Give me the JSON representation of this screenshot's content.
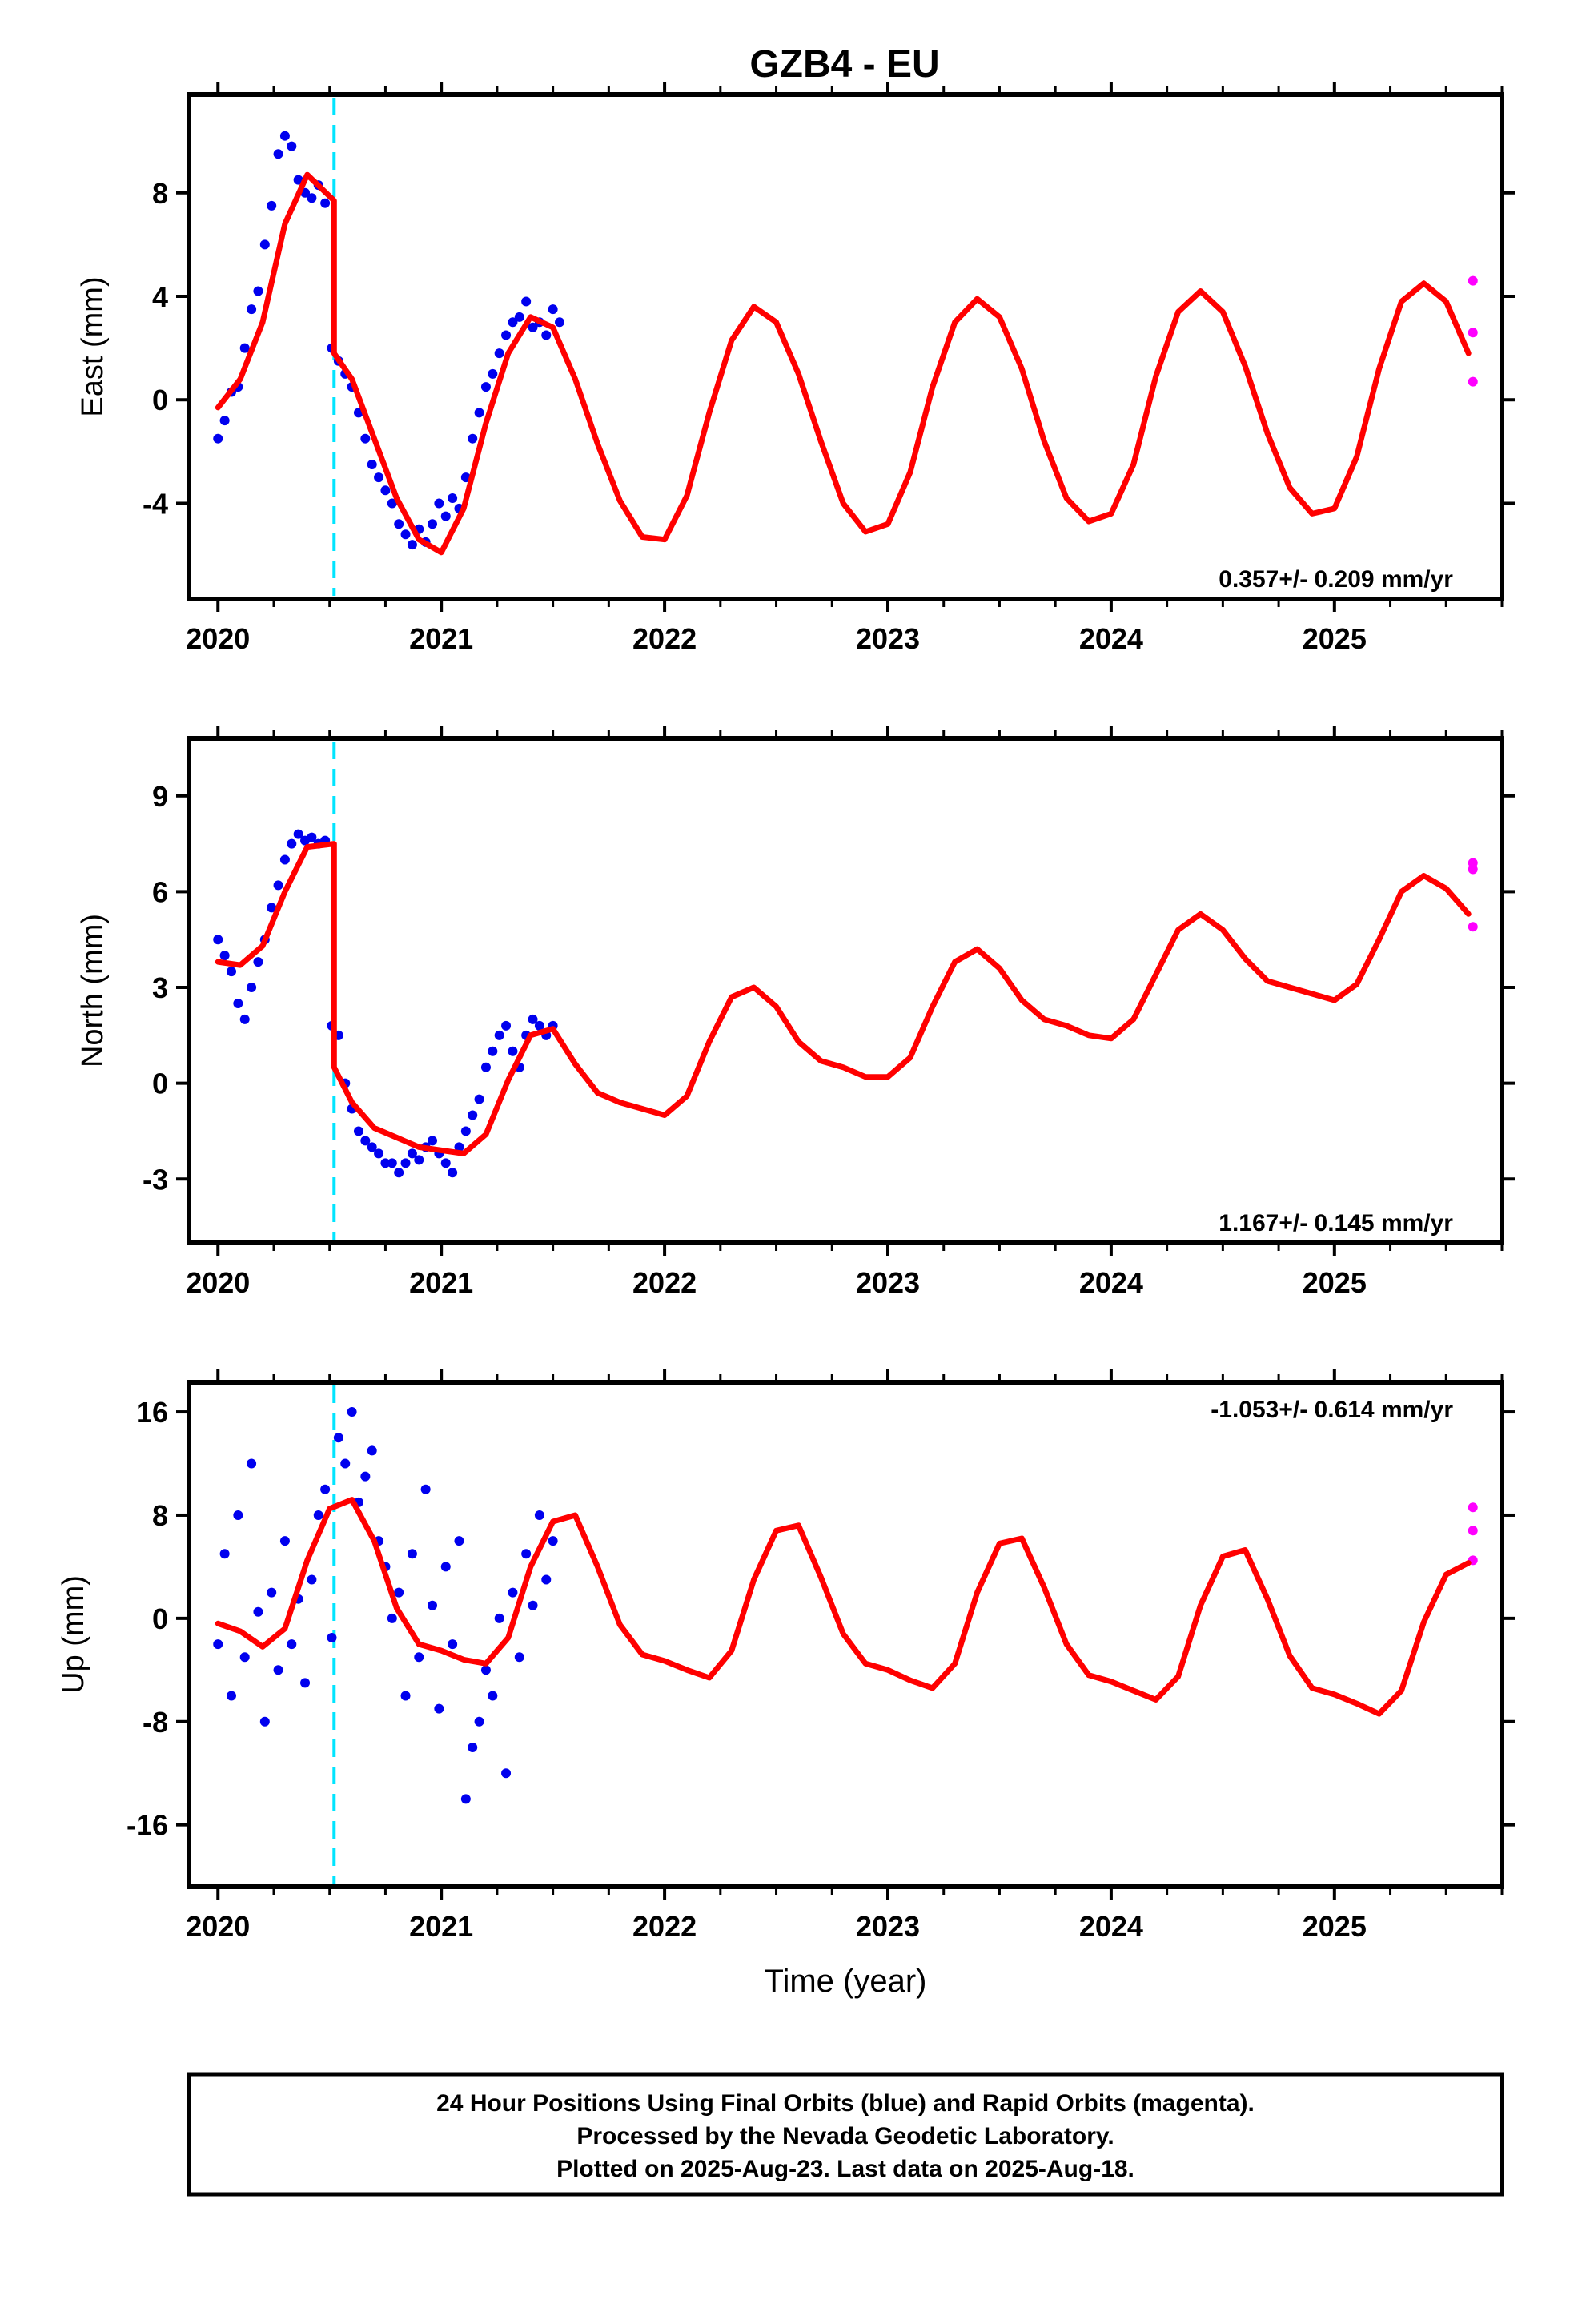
{
  "title": "GZB4 - EU",
  "caption": {
    "line1": "24 Hour Positions Using Final Orbits (blue) and Rapid Orbits (magenta).",
    "line2": "Processed by the Nevada Geodetic Laboratory.",
    "line3": "Plotted on 2025-Aug-23. Last data on 2025-Aug-18."
  },
  "colors": {
    "final_orbits": "#0000ee",
    "rapid_orbits": "#ff00ff",
    "model": "#ff0000",
    "equipment_change": "#00e5ff",
    "frame": "#000000"
  },
  "chart_data": [
    {
      "type": "scatter",
      "ylabel": "East (mm)",
      "xlabel": "",
      "rate_text": "0.357+/- 0.209 mm/yr",
      "xlim": [
        2019.87,
        2025.75
      ],
      "ylim": [
        -7.7,
        11.8
      ],
      "yticks": [
        -4,
        0,
        4,
        8
      ],
      "xticks": [
        2020,
        2021,
        2022,
        2023,
        2024,
        2025
      ],
      "grid": false,
      "equipment_change_year": 2020.52,
      "final_points": {
        "x": [
          2020.0,
          2020.03,
          2020.06,
          2020.09,
          2020.12,
          2020.15,
          2020.18,
          2020.21,
          2020.24,
          2020.27,
          2020.3,
          2020.33,
          2020.36,
          2020.39,
          2020.42,
          2020.45,
          2020.48,
          2020.51,
          2020.54,
          2020.57,
          2020.6,
          2020.63,
          2020.66,
          2020.69,
          2020.72,
          2020.75,
          2020.78,
          2020.81,
          2020.84,
          2020.87,
          2020.9,
          2020.93,
          2020.96,
          2020.99,
          2021.02,
          2021.05,
          2021.08,
          2021.11,
          2021.14,
          2021.17,
          2021.2,
          2021.23,
          2021.26,
          2021.29,
          2021.32,
          2021.35,
          2021.38,
          2021.41,
          2021.44,
          2021.47,
          2021.5,
          2021.53
        ],
        "y": [
          -1.5,
          -0.8,
          0.3,
          0.5,
          2.0,
          3.5,
          4.2,
          6.0,
          7.5,
          9.5,
          10.2,
          9.8,
          8.5,
          8.0,
          7.8,
          8.3,
          7.6,
          2.0,
          1.5,
          1.0,
          0.5,
          -0.5,
          -1.5,
          -2.5,
          -3.0,
          -3.5,
          -4.0,
          -4.8,
          -5.2,
          -5.6,
          -5.0,
          -5.5,
          -4.8,
          -4.0,
          -4.5,
          -3.8,
          -4.2,
          -3.0,
          -1.5,
          -0.5,
          0.5,
          1.0,
          1.8,
          2.5,
          3.0,
          3.2,
          3.8,
          2.8,
          3.0,
          2.5,
          3.5,
          3.0
        ]
      },
      "rapid_points": {
        "x": [
          2025.62,
          2025.62,
          2025.62
        ],
        "y": [
          4.6,
          2.6,
          0.7
        ]
      },
      "model": {
        "x": [
          2020.0,
          2020.1,
          2020.2,
          2020.3,
          2020.4,
          2020.52,
          2020.52,
          2020.6,
          2020.7,
          2020.8,
          2020.9,
          2021.0,
          2021.1,
          2021.2,
          2021.3,
          2021.4,
          2021.5,
          2021.6,
          2021.7,
          2021.8,
          2021.9,
          2022.0,
          2022.1,
          2022.2,
          2022.3,
          2022.4,
          2022.5,
          2022.6,
          2022.7,
          2022.8,
          2022.9,
          2023.0,
          2023.1,
          2023.2,
          2023.3,
          2023.4,
          2023.5,
          2023.6,
          2023.7,
          2023.8,
          2023.9,
          2024.0,
          2024.1,
          2024.2,
          2024.3,
          2024.4,
          2024.5,
          2024.6,
          2024.7,
          2024.8,
          2024.9,
          2025.0,
          2025.1,
          2025.2,
          2025.3,
          2025.4,
          2025.5,
          2025.6
        ],
        "y": [
          -0.3,
          0.8,
          3.0,
          6.8,
          8.7,
          7.7,
          1.8,
          0.8,
          -1.5,
          -3.8,
          -5.4,
          -5.9,
          -4.2,
          -0.9,
          1.8,
          3.2,
          2.8,
          0.8,
          -1.7,
          -3.9,
          -5.3,
          -5.4,
          -3.7,
          -0.5,
          2.3,
          3.6,
          3.0,
          1.0,
          -1.6,
          -4.0,
          -5.1,
          -4.8,
          -2.8,
          0.5,
          3.0,
          3.9,
          3.2,
          1.2,
          -1.6,
          -3.8,
          -4.7,
          -4.4,
          -2.5,
          0.9,
          3.4,
          4.2,
          3.4,
          1.3,
          -1.3,
          -3.4,
          -4.4,
          -4.2,
          -2.2,
          1.2,
          3.8,
          4.5,
          3.8,
          1.8
        ]
      }
    },
    {
      "type": "scatter",
      "ylabel": "North (mm)",
      "xlabel": "",
      "rate_text": "1.167+/- 0.145 mm/yr",
      "xlim": [
        2019.87,
        2025.75
      ],
      "ylim": [
        -5.0,
        10.8
      ],
      "yticks": [
        -3,
        0,
        3,
        6,
        9
      ],
      "xticks": [
        2020,
        2021,
        2022,
        2023,
        2024,
        2025
      ],
      "grid": false,
      "equipment_change_year": 2020.52,
      "final_points": {
        "x": [
          2020.0,
          2020.03,
          2020.06,
          2020.09,
          2020.12,
          2020.15,
          2020.18,
          2020.21,
          2020.24,
          2020.27,
          2020.3,
          2020.33,
          2020.36,
          2020.39,
          2020.42,
          2020.45,
          2020.48,
          2020.51,
          2020.54,
          2020.57,
          2020.6,
          2020.63,
          2020.66,
          2020.69,
          2020.72,
          2020.75,
          2020.78,
          2020.81,
          2020.84,
          2020.87,
          2020.9,
          2020.93,
          2020.96,
          2020.99,
          2021.02,
          2021.05,
          2021.08,
          2021.11,
          2021.14,
          2021.17,
          2021.2,
          2021.23,
          2021.26,
          2021.29,
          2021.32,
          2021.35,
          2021.38,
          2021.41,
          2021.44,
          2021.47,
          2021.5
        ],
        "y": [
          4.5,
          4.0,
          3.5,
          2.5,
          2.0,
          3.0,
          3.8,
          4.5,
          5.5,
          6.2,
          7.0,
          7.5,
          7.8,
          7.6,
          7.7,
          7.5,
          7.6,
          1.8,
          1.5,
          0.0,
          -0.8,
          -1.5,
          -1.8,
          -2.0,
          -2.2,
          -2.5,
          -2.5,
          -2.8,
          -2.5,
          -2.2,
          -2.4,
          -2.0,
          -1.8,
          -2.2,
          -2.5,
          -2.8,
          -2.0,
          -1.5,
          -1.0,
          -0.5,
          0.5,
          1.0,
          1.5,
          1.8,
          1.0,
          0.5,
          1.5,
          2.0,
          1.8,
          1.5,
          1.8
        ]
      },
      "rapid_points": {
        "x": [
          2025.62,
          2025.62,
          2025.62
        ],
        "y": [
          6.9,
          6.7,
          4.9
        ]
      },
      "model": {
        "x": [
          2020.0,
          2020.1,
          2020.2,
          2020.3,
          2020.4,
          2020.52,
          2020.52,
          2020.6,
          2020.7,
          2020.8,
          2020.9,
          2021.0,
          2021.1,
          2021.2,
          2021.3,
          2021.4,
          2021.5,
          2021.6,
          2021.7,
          2021.8,
          2021.9,
          2022.0,
          2022.1,
          2022.2,
          2022.3,
          2022.4,
          2022.5,
          2022.6,
          2022.7,
          2022.8,
          2022.9,
          2023.0,
          2023.1,
          2023.2,
          2023.3,
          2023.4,
          2023.5,
          2023.6,
          2023.7,
          2023.8,
          2023.9,
          2024.0,
          2024.1,
          2024.2,
          2024.3,
          2024.4,
          2024.5,
          2024.6,
          2024.7,
          2024.8,
          2024.9,
          2025.0,
          2025.1,
          2025.2,
          2025.3,
          2025.4,
          2025.5,
          2025.6
        ],
        "y": [
          3.8,
          3.7,
          4.3,
          6.0,
          7.4,
          7.5,
          0.5,
          -0.6,
          -1.4,
          -1.7,
          -2.0,
          -2.1,
          -2.2,
          -1.6,
          0.1,
          1.5,
          1.7,
          0.6,
          -0.3,
          -0.6,
          -0.8,
          -1.0,
          -0.4,
          1.3,
          2.7,
          3.0,
          2.4,
          1.3,
          0.7,
          0.5,
          0.2,
          0.2,
          0.8,
          2.4,
          3.8,
          4.2,
          3.6,
          2.6,
          2.0,
          1.8,
          1.5,
          1.4,
          2.0,
          3.4,
          4.8,
          5.3,
          4.8,
          3.9,
          3.2,
          3.0,
          2.8,
          2.6,
          3.1,
          4.5,
          6.0,
          6.5,
          6.1,
          5.3
        ]
      }
    },
    {
      "type": "scatter",
      "ylabel": "Up (mm)",
      "xlabel": "Time (year)",
      "rate_text": "-1.053+/- 0.614 mm/yr",
      "xlim": [
        2019.87,
        2025.75
      ],
      "ylim": [
        -20.8,
        18.3
      ],
      "yticks": [
        -16,
        -8,
        0,
        8,
        16
      ],
      "xticks": [
        2020,
        2021,
        2022,
        2023,
        2024,
        2025
      ],
      "grid": false,
      "equipment_change_year": 2020.52,
      "final_points": {
        "x": [
          2020.0,
          2020.03,
          2020.06,
          2020.09,
          2020.12,
          2020.15,
          2020.18,
          2020.21,
          2020.24,
          2020.27,
          2020.3,
          2020.33,
          2020.36,
          2020.39,
          2020.42,
          2020.45,
          2020.48,
          2020.51,
          2020.54,
          2020.57,
          2020.6,
          2020.63,
          2020.66,
          2020.69,
          2020.72,
          2020.75,
          2020.78,
          2020.81,
          2020.84,
          2020.87,
          2020.9,
          2020.93,
          2020.96,
          2020.99,
          2021.02,
          2021.05,
          2021.08,
          2021.11,
          2021.14,
          2021.17,
          2021.2,
          2021.23,
          2021.26,
          2021.29,
          2021.32,
          2021.35,
          2021.38,
          2021.41,
          2021.44,
          2021.47,
          2021.5
        ],
        "y": [
          -2.0,
          5.0,
          -6.0,
          8.0,
          -3.0,
          12.0,
          0.5,
          -8.0,
          2.0,
          -4.0,
          6.0,
          -2.0,
          1.5,
          -5.0,
          3.0,
          8.0,
          10.0,
          -1.5,
          14.0,
          12.0,
          16.0,
          9.0,
          11.0,
          13.0,
          6.0,
          4.0,
          0.0,
          2.0,
          -6.0,
          5.0,
          -3.0,
          10.0,
          1.0,
          -7.0,
          4.0,
          -2.0,
          6.0,
          -14.0,
          -10.0,
          -8.0,
          -4.0,
          -6.0,
          0.0,
          -12.0,
          2.0,
          -3.0,
          5.0,
          1.0,
          8.0,
          3.0,
          6.0
        ]
      },
      "rapid_points": {
        "x": [
          2025.62,
          2025.62,
          2025.62
        ],
        "y": [
          8.6,
          6.8,
          4.5
        ]
      },
      "model": {
        "x": [
          2020.0,
          2020.1,
          2020.2,
          2020.3,
          2020.4,
          2020.5,
          2020.6,
          2020.7,
          2020.8,
          2020.9,
          2021.0,
          2021.1,
          2021.2,
          2021.3,
          2021.4,
          2021.5,
          2021.6,
          2021.7,
          2021.8,
          2021.9,
          2022.0,
          2022.1,
          2022.2,
          2022.3,
          2022.4,
          2022.5,
          2022.6,
          2022.7,
          2022.8,
          2022.9,
          2023.0,
          2023.1,
          2023.2,
          2023.3,
          2023.4,
          2023.5,
          2023.6,
          2023.7,
          2023.8,
          2023.9,
          2024.0,
          2024.1,
          2024.2,
          2024.3,
          2024.4,
          2024.5,
          2024.6,
          2024.7,
          2024.8,
          2024.9,
          2025.0,
          2025.1,
          2025.2,
          2025.3,
          2025.4,
          2025.5,
          2025.6
        ],
        "y": [
          -0.4,
          -1.0,
          -2.2,
          -0.8,
          4.5,
          8.5,
          9.2,
          6.0,
          0.8,
          -2.0,
          -2.5,
          -3.2,
          -3.5,
          -1.5,
          4.0,
          7.5,
          8.0,
          4.0,
          -0.5,
          -2.8,
          -3.3,
          -4.0,
          -4.6,
          -2.5,
          3.0,
          6.8,
          7.2,
          3.2,
          -1.2,
          -3.5,
          -4.0,
          -4.8,
          -5.4,
          -3.5,
          2.0,
          5.8,
          6.2,
          2.4,
          -2.0,
          -4.4,
          -4.9,
          -5.6,
          -6.3,
          -4.5,
          1.0,
          4.8,
          5.3,
          1.5,
          -2.9,
          -5.4,
          -5.9,
          -6.6,
          -7.4,
          -5.6,
          -0.3,
          3.4,
          4.3
        ]
      }
    }
  ]
}
